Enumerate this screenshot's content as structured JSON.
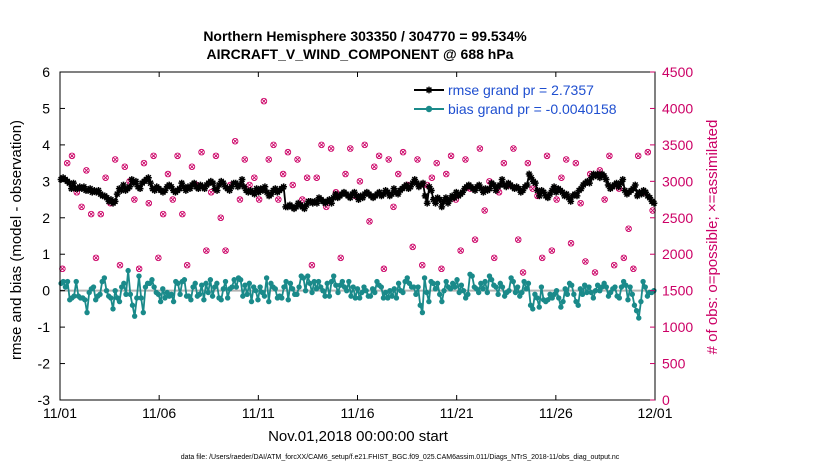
{
  "chart_data": {
    "type": "line",
    "title": "Northern Hemisphere 303350 / 304770 = 99.534%",
    "subtitle": "AIRCRAFT_V_WIND_COMPONENT @ 688 hPa",
    "xlabel": "Nov.01,2018 00:00:00 start",
    "ylabel": "rmse and bias (model - observation)",
    "y2label": "# of obs: o=possible; ×=assimilated",
    "footer": "data file: /Users/raeder/DAI/ATM_forcXX/CAM6_setup/f.e21.FHIST_BGC.f09_025.CAM6assim.011/Diags_NTrS_2018-11/obs_diag_output.nc",
    "xlim": [
      0,
      30
    ],
    "ylim": [
      -3,
      6
    ],
    "y2lim": [
      0,
      4500
    ],
    "x_ticks": [
      0,
      5,
      10,
      15,
      20,
      25,
      30
    ],
    "x_tick_labels": [
      "11/01",
      "11/06",
      "11/11",
      "11/16",
      "11/21",
      "11/26",
      "12/01"
    ],
    "y_ticks": [
      -3,
      -2,
      -1,
      0,
      1,
      2,
      3,
      4,
      5,
      6
    ],
    "y_tick_labels": [
      "-3",
      "-2",
      "-1",
      "0",
      "1",
      "2",
      "3",
      "4",
      "5",
      "6"
    ],
    "y2_ticks": [
      0,
      500,
      1000,
      1500,
      2000,
      2500,
      3000,
      3500,
      4000,
      4500
    ],
    "y2_tick_labels": [
      "0",
      "500",
      "1000",
      "1500",
      "2000",
      "2500",
      "3000",
      "3500",
      "4000",
      "4500"
    ],
    "legend_position": "top-right",
    "colors": {
      "rmse": "#000000",
      "bias": "#1a8a8a",
      "obs": "#cc0066",
      "legend_text": "#1f4fd0",
      "zero_line": "#b3b3b3"
    },
    "series": [
      {
        "name": "rmse grand pr = 2.7357",
        "marker": "star",
        "values": [
          3.05,
          3.1,
          3.05,
          3.0,
          2.95,
          2.8,
          2.95,
          2.8,
          2.8,
          2.85,
          2.8,
          2.85,
          2.75,
          2.75,
          2.8,
          2.7,
          2.75,
          2.7,
          2.75,
          2.65,
          2.6,
          2.6,
          2.55,
          2.45,
          2.5,
          2.4,
          2.45,
          2.65,
          2.8,
          2.75,
          2.9,
          2.75,
          2.8,
          2.85,
          3.05,
          2.95,
          3.0,
          2.85,
          2.8,
          2.95,
          3.0,
          3.05,
          3.1,
          2.95,
          2.8,
          2.75,
          2.85,
          2.8,
          2.75,
          2.7,
          2.75,
          2.85,
          2.9,
          2.85,
          2.75,
          2.7,
          2.75,
          2.8,
          2.95,
          2.85,
          2.75,
          2.85,
          2.8,
          2.9,
          2.95,
          2.85,
          2.8,
          2.9,
          2.85,
          2.8,
          2.9,
          2.95,
          3.0,
          2.95,
          2.8,
          2.75,
          2.9,
          3.0,
          2.95,
          2.85,
          2.8,
          2.75,
          2.85,
          2.95,
          2.95,
          2.85,
          2.9,
          3.05,
          2.85,
          2.75,
          2.7,
          2.75,
          2.7,
          2.65,
          2.8,
          2.7,
          2.8,
          2.75,
          2.85,
          2.7,
          2.6,
          2.65,
          2.75,
          2.8,
          2.7,
          2.75,
          2.8,
          2.85,
          2.3,
          2.3,
          2.35,
          2.3,
          2.25,
          2.3,
          2.4,
          2.35,
          2.3,
          2.25,
          2.35,
          2.45,
          2.45,
          2.4,
          2.45,
          2.4,
          2.55,
          2.5,
          2.45,
          2.4,
          2.45,
          2.5,
          2.4,
          2.55,
          2.65,
          2.55,
          2.6,
          2.65,
          2.7,
          2.65,
          2.6,
          2.55,
          2.65,
          2.7,
          2.6,
          2.5,
          2.6,
          2.55,
          2.65,
          2.7,
          2.65,
          2.6,
          2.55,
          2.6,
          2.65,
          2.7,
          2.6,
          2.65,
          2.75,
          2.7,
          2.6,
          2.65,
          2.8,
          2.7,
          2.65,
          2.75,
          2.8,
          2.85,
          2.9,
          2.8,
          2.85,
          2.95,
          3.05,
          2.95,
          2.85,
          2.9,
          2.95,
          2.6,
          2.4,
          2.85,
          2.75,
          2.5,
          2.4,
          2.55,
          2.5,
          2.3,
          2.45,
          2.55,
          2.4,
          2.5,
          2.6,
          2.55,
          2.7,
          2.6,
          2.65,
          2.7,
          2.8,
          2.85,
          2.9,
          2.85,
          2.8,
          2.75,
          2.85,
          2.9,
          2.8,
          2.7,
          2.8,
          2.75,
          2.8,
          2.95,
          2.9,
          2.75,
          2.85,
          2.9,
          3.05,
          2.9,
          2.85,
          2.95,
          2.9,
          2.85,
          2.8,
          2.85,
          2.8,
          2.7,
          2.75,
          2.85,
          2.9,
          3.2,
          3.1,
          3.0,
          2.95,
          2.75,
          2.6,
          2.75,
          2.7,
          2.6,
          2.55,
          2.65,
          2.75,
          2.85,
          2.7,
          2.8,
          2.75,
          2.7,
          2.6,
          2.65,
          2.55,
          2.45,
          2.6,
          2.65,
          2.6,
          2.75,
          2.8,
          2.9,
          2.95,
          3.0,
          2.95,
          3.1,
          3.2,
          3.15,
          3.2,
          3.1,
          3.2,
          3.15,
          3.05,
          2.9,
          2.8,
          2.85,
          2.9,
          2.95,
          2.85,
          2.95,
          3.05,
          2.75,
          2.65,
          2.7,
          2.75,
          2.8,
          2.9,
          2.6,
          2.7,
          2.65,
          2.75,
          2.7,
          2.6,
          2.55,
          2.45,
          2.4
        ]
      },
      {
        "name": "bias grand pr = -0.0040158",
        "marker": "dot",
        "values": [
          0.2,
          0.25,
          0.1,
          0.25,
          -0.25,
          -0.2,
          -0.15,
          0.25,
          -0.15,
          -0.2,
          -0.2,
          -0.25,
          -0.6,
          -0.05,
          0.05,
          0.1,
          -0.25,
          -0.15,
          -0.1,
          0.25,
          0.35,
          0.0,
          -0.15,
          -0.2,
          -0.5,
          0.0,
          -0.2,
          -0.3,
          0.1,
          0.2,
          -0.1,
          0.55,
          -0.1,
          -0.4,
          -0.7,
          -0.2,
          0.4,
          -0.2,
          -0.6,
          0.1,
          0.2,
          0.2,
          0.3,
          0.1,
          -0.05,
          -0.1,
          -0.3,
          0.05,
          -0.2,
          -0.05,
          -0.15,
          -0.1,
          -0.3,
          0.25,
          0.2,
          -0.1,
          0.25,
          0.3,
          -0.15,
          -0.15,
          -0.25,
          0.1,
          0.2,
          -0.15,
          -0.1,
          0.15,
          -0.25,
          0.2,
          -0.05,
          0.3,
          -0.15,
          0.1,
          0.2,
          -0.2,
          -0.25,
          0.05,
          0.25,
          -0.2,
          0.05,
          0.1,
          0.3,
          0.1,
          0.35,
          0.3,
          -0.15,
          0.15,
          -0.1,
          0.2,
          -0.3,
          0.1,
          0.0,
          -0.25,
          0.1,
          -0.05,
          -0.15,
          0.35,
          -0.3,
          0.2,
          0.1,
          0.05,
          -0.2,
          -0.15,
          -0.2,
          0.1,
          0.25,
          -0.25,
          0.2,
          0.05,
          -0.1,
          -0.1,
          0.1,
          0.4,
          0.35,
          0.0,
          0.4,
          0.2,
          -0.05,
          0.25,
          0.05,
          0.25,
          0.1,
          0.0,
          -0.15,
          0.2,
          -0.15,
          0.25,
          0.4,
          0.15,
          -0.05,
          0.15,
          0.25,
          0.1,
          0.0,
          0.25,
          -0.15,
          0.1,
          -0.2,
          0.05,
          -0.2,
          -0.05,
          0.1,
          0.0,
          -0.15,
          -0.15,
          0.05,
          -0.05,
          0.25,
          0.15,
          0.1,
          -0.2,
          -0.05,
          -0.2,
          0.0,
          -0.15,
          0.05,
          -0.2,
          0.2,
          0.0,
          -0.05,
          0.25,
          0.35,
          0.2,
          0.1,
          0.1,
          -0.1,
          0.1,
          -0.4,
          -0.6,
          0.35,
          -0.05,
          -0.3,
          0.25,
          0.2,
          0.05,
          0.2,
          -0.1,
          -0.3,
          0.0,
          0.25,
          0.1,
          0.05,
          0.2,
          0.1,
          0.3,
          -0.05,
          0.15,
          0.0,
          -0.2,
          -0.1,
          0.45,
          0.4,
          0.1,
          0.05,
          -0.05,
          0.2,
          0.05,
          0.25,
          -0.05,
          0.4,
          0.3,
          0.15,
          0.1,
          -0.1,
          0.2,
          0.1,
          -0.15,
          -0.05,
          0.0,
          0.35,
          0.25,
          -0.05,
          0.1,
          -0.15,
          -0.05,
          0.25,
          0.05,
          0.2,
          -0.4,
          -0.5,
          -0.1,
          -0.2,
          -0.45,
          0.1,
          -0.25,
          -0.3,
          -0.25,
          -0.1,
          -0.2,
          -0.1,
          0.0,
          -0.2,
          -0.45,
          -0.3,
          0.05,
          -0.1,
          0.2,
          0.15,
          -0.1,
          -0.3,
          -0.4,
          0.05,
          -0.1,
          0.15,
          -0.05,
          0.1,
          -0.05,
          -0.2,
          0.0,
          0.15,
          0.0,
          0.1,
          0.2,
          0.1,
          -0.15,
          -0.05,
          0.05,
          0.1,
          -0.15,
          -0.2,
          0.1,
          0.25,
          0.15,
          -0.25,
          0.1,
          -0.1,
          -0.4,
          -0.55,
          -0.75,
          -0.3,
          0.25,
          0.1,
          -0.15,
          -0.05,
          -0.05,
          0.0
        ]
      }
    ],
    "obs_possible": [
      1800,
      3250,
      3350,
      2850,
      2650,
      3150,
      2550,
      1950,
      2550,
      3050,
      2700,
      3300,
      1850,
      3200,
      3000,
      2750,
      1800,
      3250,
      2700,
      3350,
      1950,
      2550,
      3100,
      2750,
      3350,
      2550,
      1850,
      3200,
      2950,
      3400,
      2050,
      2850,
      3350,
      2500,
      2050,
      2950,
      3550,
      2750,
      3300,
      2950,
      3050,
      2750,
      4100,
      3300,
      3500,
      2750,
      3100,
      3400,
      2950,
      3300,
      2750,
      3050,
      1850,
      3050,
      3500,
      2650,
      3450,
      2850,
      1950,
      3100,
      3450,
      2800,
      3000,
      3500,
      2450,
      3200,
      3350,
      1800,
      3300,
      2650,
      3100,
      3400,
      2950,
      2100,
      3300,
      1850,
      2950,
      3050,
      3250,
      1800,
      3100,
      3350,
      2750,
      2050,
      3300,
      2900,
      2200,
      3450,
      2600,
      3000,
      1950,
      2850,
      3250,
      2950,
      3450,
      2200,
      1750,
      3250,
      2900,
      2800,
      1950,
      3350,
      2050,
      2750,
      3050,
      3300,
      2150,
      3250,
      2700,
      1900,
      3100,
      1750,
      3150,
      2750,
      3350,
      1850,
      2900,
      1950,
      2350,
      1800,
      3350,
      2850,
      3400,
      2600
    ],
    "obs_assimilated": [
      1800,
      3250,
      3350,
      2850,
      2650,
      3150,
      2550,
      1950,
      2550,
      3050,
      2700,
      3300,
      1850,
      3200,
      3000,
      2750,
      1800,
      3250,
      2700,
      3350,
      1950,
      2550,
      3100,
      2750,
      3350,
      2550,
      1850,
      3200,
      2950,
      3400,
      2050,
      2850,
      3350,
      2500,
      2050,
      2950,
      3550,
      2750,
      3300,
      2950,
      3050,
      2750,
      4100,
      3300,
      3500,
      2750,
      3100,
      3400,
      2950,
      3300,
      2750,
      3050,
      1850,
      3050,
      3500,
      2650,
      3450,
      2850,
      1950,
      3100,
      3450,
      2800,
      3000,
      3500,
      2450,
      3200,
      3350,
      1800,
      3300,
      2650,
      3100,
      3400,
      2950,
      2100,
      3300,
      1850,
      2950,
      3050,
      3250,
      1800,
      3100,
      3350,
      2750,
      2050,
      3300,
      2900,
      2200,
      3450,
      2600,
      3000,
      1950,
      2850,
      3250,
      2950,
      3450,
      2200,
      1750,
      3250,
      2900,
      2800,
      1950,
      3350,
      2050,
      2750,
      3050,
      3300,
      2150,
      3250,
      2700,
      1900,
      3100,
      1750,
      3150,
      2750,
      3350,
      1850,
      2900,
      1950,
      2350,
      1800,
      3350,
      2850,
      3400,
      2600
    ]
  }
}
